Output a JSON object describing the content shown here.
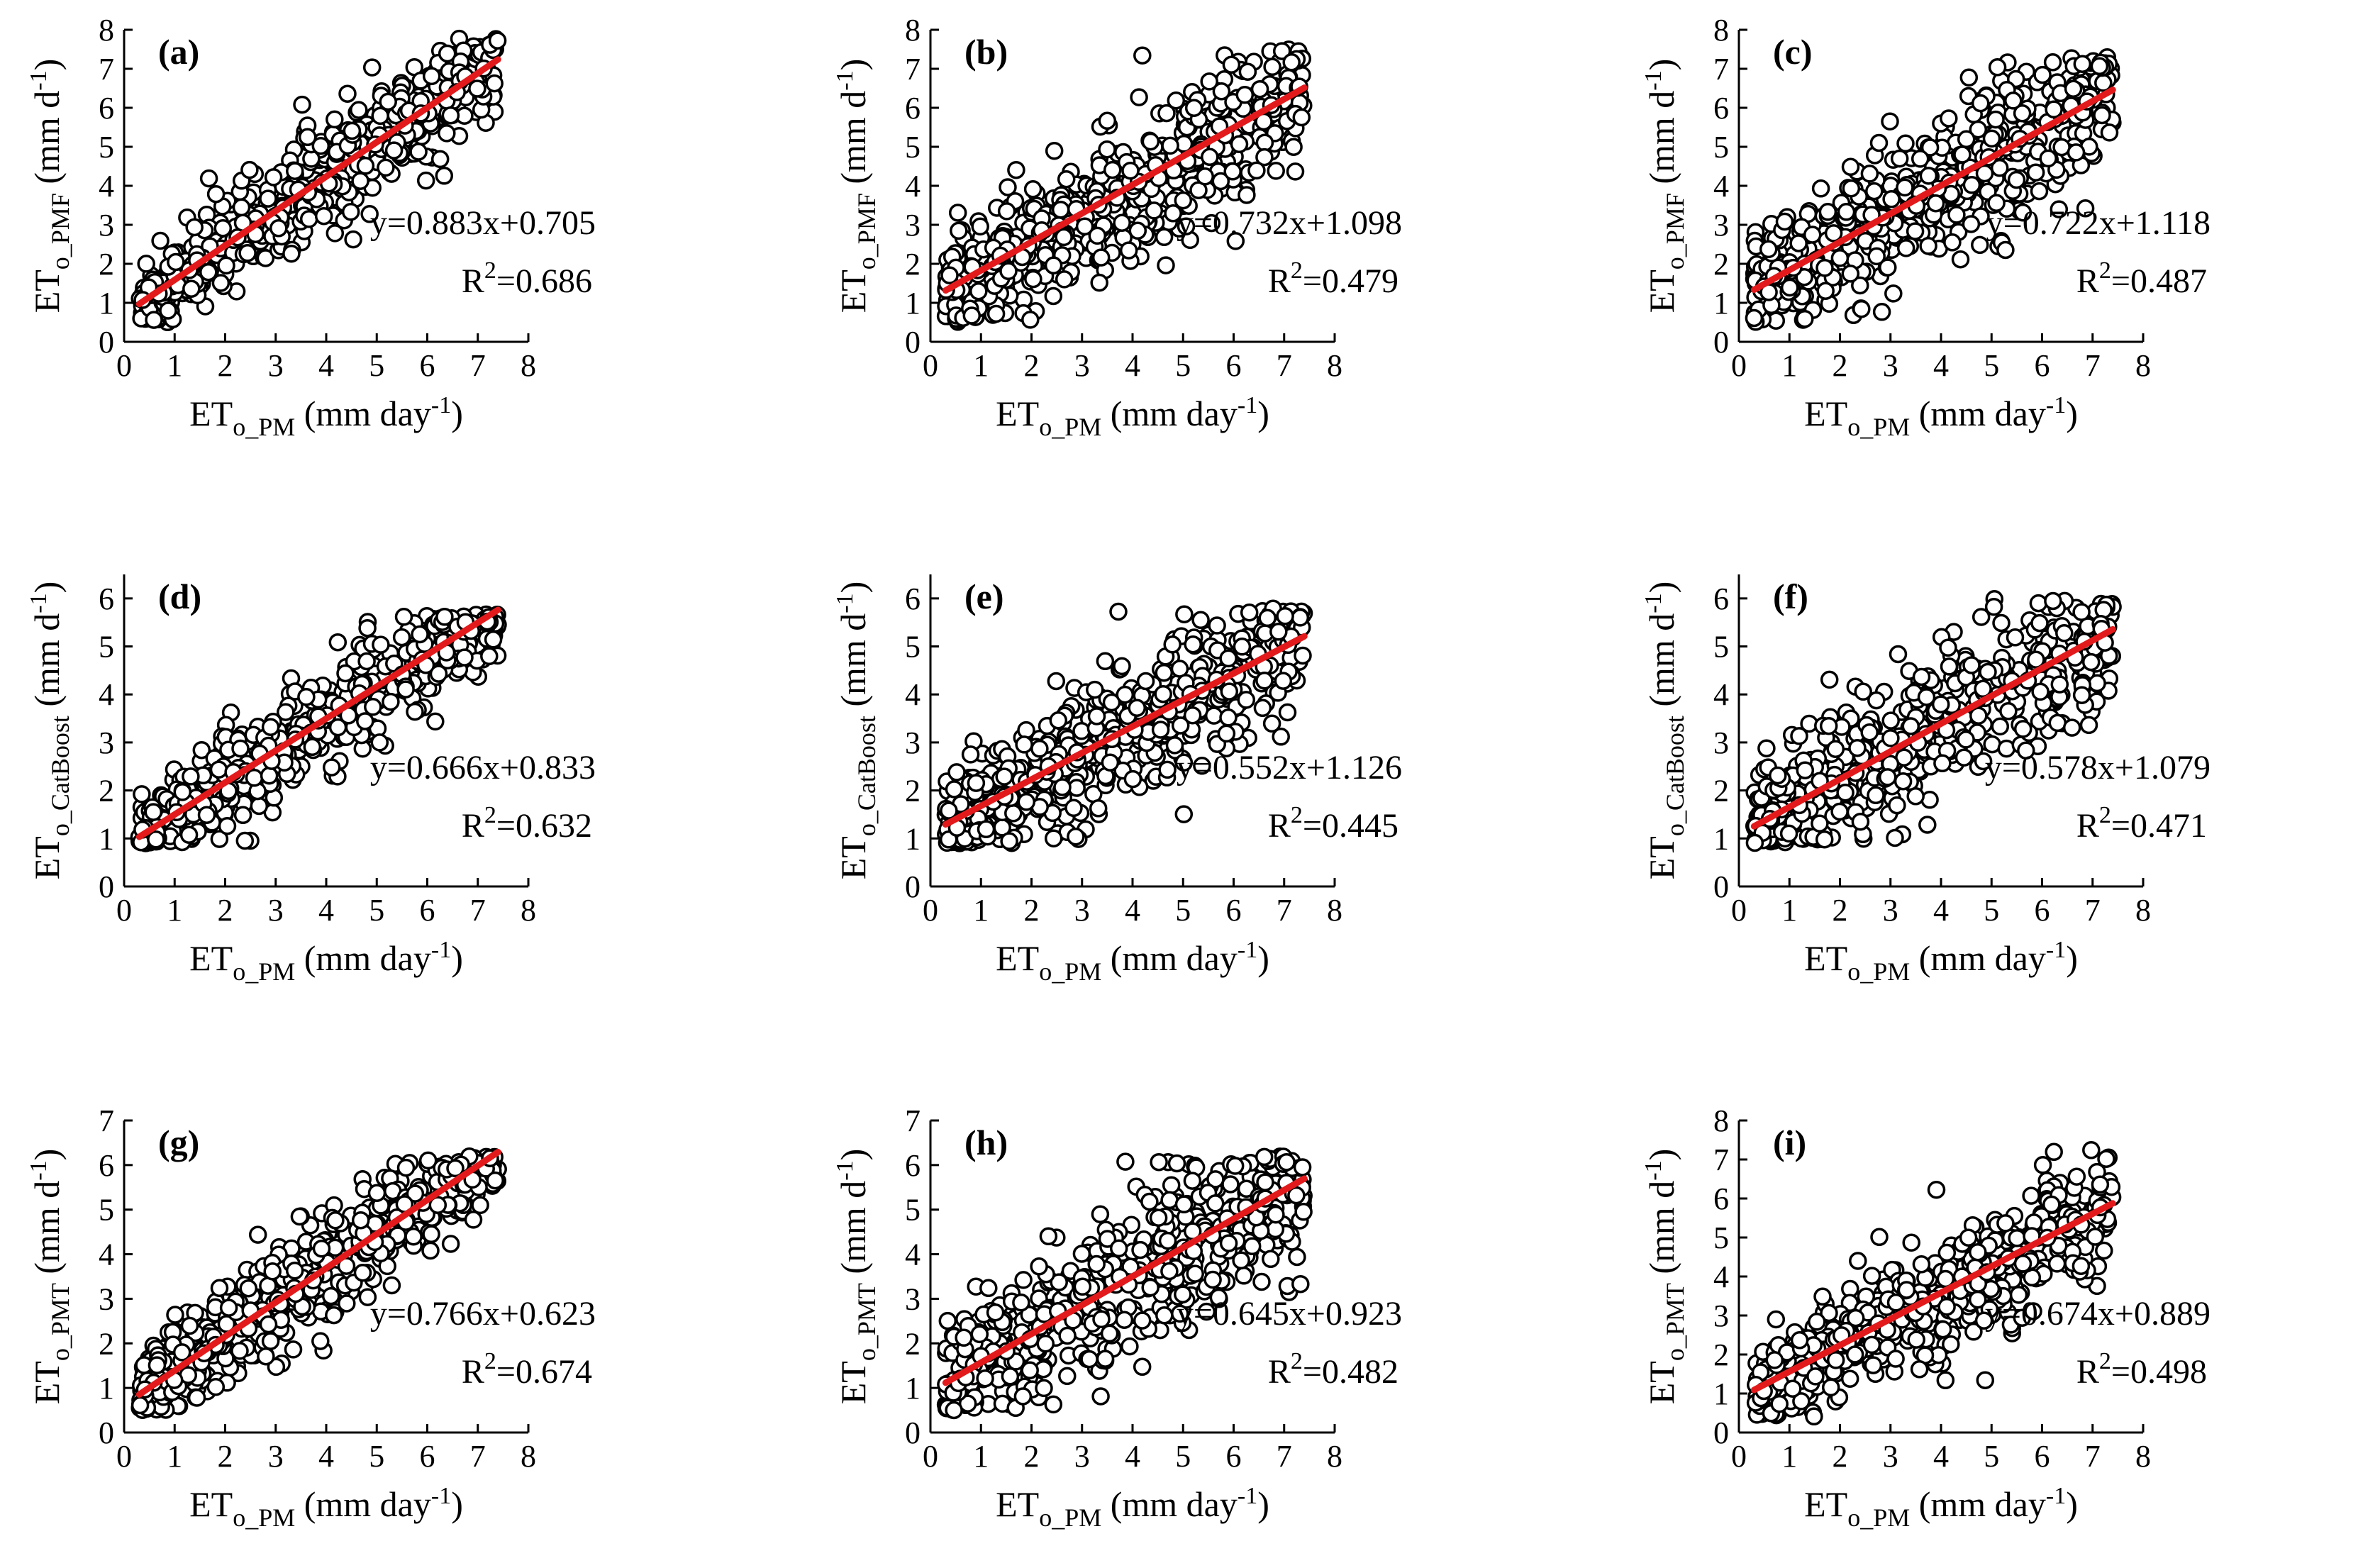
{
  "figure": {
    "type": "scatter_grid",
    "colors": {
      "point_stroke": "#000000",
      "point_fill": "#ffffff",
      "regression_line": "#e31a1c",
      "axes": "#000000"
    }
  },
  "chart_data": [
    {
      "id": "a",
      "label": "(a)",
      "type": "scatter",
      "xlabel": {
        "main": "ET",
        "sub": "o_PM",
        "rest": " (mm day",
        "sup": "-1",
        "end": ")"
      },
      "ylabel": {
        "main": "ET",
        "sub": "o_PMF",
        "rest": " (mm d",
        "sup": "-1",
        "end": ")"
      },
      "xlim": [
        0,
        8
      ],
      "ylim": [
        0,
        8
      ],
      "xticks": [
        0,
        1,
        2,
        3,
        4,
        5,
        6,
        7,
        8
      ],
      "yticks": [
        0,
        1,
        2,
        3,
        4,
        5,
        6,
        7,
        8
      ],
      "fit": {
        "slope": 0.883,
        "intercept": 0.705,
        "x_range": [
          0.3,
          7.4
        ]
      },
      "equation": "y=0.883x+0.705",
      "r2_prefix": "R",
      "r2_sup": "2",
      "r2_value": "=0.686",
      "sample": {
        "n": 560,
        "seed": 101,
        "noise_sd": 0.9,
        "y_floor": 0.5,
        "y_ceil": 7.8
      }
    },
    {
      "id": "b",
      "label": "(b)",
      "type": "scatter",
      "xlabel": {
        "main": "ET",
        "sub": "o_PM",
        "rest": " (mm day",
        "sup": "-1",
        "end": ")"
      },
      "ylabel": {
        "main": "ET",
        "sub": "o_PMF",
        "rest": " (mm d",
        "sup": "-1",
        "end": ")"
      },
      "xlim": [
        0,
        8
      ],
      "ylim": [
        0,
        8
      ],
      "xticks": [
        0,
        1,
        2,
        3,
        4,
        5,
        6,
        7,
        8
      ],
      "yticks": [
        0,
        1,
        2,
        3,
        4,
        5,
        6,
        7,
        8
      ],
      "fit": {
        "slope": 0.732,
        "intercept": 1.098,
        "x_range": [
          0.3,
          7.4
        ]
      },
      "equation": "y=0.732x+1.098",
      "r2_prefix": "R",
      "r2_sup": "2",
      "r2_value": "=0.479",
      "sample": {
        "n": 560,
        "seed": 202,
        "noise_sd": 1.25,
        "y_floor": 0.5,
        "y_ceil": 7.5
      }
    },
    {
      "id": "c",
      "label": "(c)",
      "type": "scatter",
      "xlabel": {
        "main": "ET",
        "sub": "o_PM",
        "rest": " (mm day",
        "sup": "-1",
        "end": ")"
      },
      "ylabel": {
        "main": "ET",
        "sub": "o_PMF",
        "rest": " (mm d",
        "sup": "-1",
        "end": ")"
      },
      "xlim": [
        0,
        8
      ],
      "ylim": [
        0,
        8
      ],
      "xticks": [
        0,
        1,
        2,
        3,
        4,
        5,
        6,
        7,
        8
      ],
      "yticks": [
        0,
        1,
        2,
        3,
        4,
        5,
        6,
        7,
        8
      ],
      "fit": {
        "slope": 0.722,
        "intercept": 1.118,
        "x_range": [
          0.3,
          7.4
        ]
      },
      "equation": "y=0.722x+1.118",
      "r2_prefix": "R",
      "r2_sup": "2",
      "r2_value": "=0.487",
      "sample": {
        "n": 560,
        "seed": 303,
        "noise_sd": 1.2,
        "y_floor": 0.5,
        "y_ceil": 7.3
      }
    },
    {
      "id": "d",
      "label": "(d)",
      "type": "scatter",
      "xlabel": {
        "main": "ET",
        "sub": "o_PM",
        "rest": " (mm day",
        "sup": "-1",
        "end": ")"
      },
      "ylabel": {
        "main": "ET",
        "sub": "o_CatBoost",
        "rest": " (mm d",
        "sup": "-1",
        "end": ")"
      },
      "xlim": [
        0,
        8
      ],
      "ylim": [
        0,
        6.5
      ],
      "xticks": [
        0,
        1,
        2,
        3,
        4,
        5,
        6,
        7,
        8
      ],
      "yticks": [
        0,
        1,
        2,
        3,
        4,
        5,
        6
      ],
      "fit": {
        "slope": 0.666,
        "intercept": 0.833,
        "x_range": [
          0.3,
          7.4
        ]
      },
      "equation": "y=0.666x+0.833",
      "r2_prefix": "R",
      "r2_sup": "2",
      "r2_value": "=0.632",
      "sample": {
        "n": 560,
        "seed": 404,
        "noise_sd": 0.75,
        "y_floor": 0.9,
        "y_ceil": 5.7
      }
    },
    {
      "id": "e",
      "label": "(e)",
      "type": "scatter",
      "xlabel": {
        "main": "ET",
        "sub": "o_PM",
        "rest": " (mm day",
        "sup": "-1",
        "end": ")"
      },
      "ylabel": {
        "main": "ET",
        "sub": "o_CatBoost",
        "rest": " (mm d",
        "sup": "-1",
        "end": ")"
      },
      "xlim": [
        0,
        8
      ],
      "ylim": [
        0,
        6.5
      ],
      "xticks": [
        0,
        1,
        2,
        3,
        4,
        5,
        6,
        7,
        8
      ],
      "yticks": [
        0,
        1,
        2,
        3,
        4,
        5,
        6
      ],
      "fit": {
        "slope": 0.552,
        "intercept": 1.126,
        "x_range": [
          0.3,
          7.4
        ]
      },
      "equation": "y=0.552x+1.126",
      "r2_prefix": "R",
      "r2_sup": "2",
      "r2_value": "=0.445",
      "sample": {
        "n": 560,
        "seed": 505,
        "noise_sd": 1.0,
        "y_floor": 0.9,
        "y_ceil": 5.8
      }
    },
    {
      "id": "f",
      "label": "(f)",
      "type": "scatter",
      "xlabel": {
        "main": "ET",
        "sub": "o_PM",
        "rest": " (mm day",
        "sup": "-1",
        "end": ")"
      },
      "ylabel": {
        "main": "ET",
        "sub": "o_CatBoost",
        "rest": " (mm d",
        "sup": "-1",
        "end": ")"
      },
      "xlim": [
        0,
        8
      ],
      "ylim": [
        0,
        6.5
      ],
      "xticks": [
        0,
        1,
        2,
        3,
        4,
        5,
        6,
        7,
        8
      ],
      "yticks": [
        0,
        1,
        2,
        3,
        4,
        5,
        6
      ],
      "fit": {
        "slope": 0.578,
        "intercept": 1.079,
        "x_range": [
          0.3,
          7.4
        ]
      },
      "equation": "y=0.578x+1.079",
      "r2_prefix": "R",
      "r2_sup": "2",
      "r2_value": "=0.471",
      "sample": {
        "n": 560,
        "seed": 606,
        "noise_sd": 1.0,
        "y_floor": 0.9,
        "y_ceil": 6.0
      }
    },
    {
      "id": "g",
      "label": "(g)",
      "type": "scatter",
      "xlabel": {
        "main": "ET",
        "sub": "o_PM",
        "rest": " (mm day",
        "sup": "-1",
        "end": ")"
      },
      "ylabel": {
        "main": "ET",
        "sub": "o_PMT",
        "rest": " (mm d",
        "sup": "-1",
        "end": ")"
      },
      "xlim": [
        0,
        8
      ],
      "ylim": [
        0,
        7
      ],
      "xticks": [
        0,
        1,
        2,
        3,
        4,
        5,
        6,
        7,
        8
      ],
      "yticks": [
        0,
        1,
        2,
        3,
        4,
        5,
        6,
        7
      ],
      "fit": {
        "slope": 0.766,
        "intercept": 0.623,
        "x_range": [
          0.3,
          7.4
        ]
      },
      "equation": "y=0.766x+0.623",
      "r2_prefix": "R",
      "r2_sup": "2",
      "r2_value": "=0.674",
      "sample": {
        "n": 560,
        "seed": 707,
        "noise_sd": 0.8,
        "y_floor": 0.5,
        "y_ceil": 6.2
      }
    },
    {
      "id": "h",
      "label": "(h)",
      "type": "scatter",
      "xlabel": {
        "main": "ET",
        "sub": "o_PM",
        "rest": " (mm day",
        "sup": "-1",
        "end": ")"
      },
      "ylabel": {
        "main": "ET",
        "sub": "o_PMT",
        "rest": " (mm d",
        "sup": "-1",
        "end": ")"
      },
      "xlim": [
        0,
        8
      ],
      "ylim": [
        0,
        7
      ],
      "xticks": [
        0,
        1,
        2,
        3,
        4,
        5,
        6,
        7,
        8
      ],
      "yticks": [
        0,
        1,
        2,
        3,
        4,
        5,
        6,
        7
      ],
      "fit": {
        "slope": 0.645,
        "intercept": 0.923,
        "x_range": [
          0.3,
          7.4
        ]
      },
      "equation": "y=0.645x+0.923",
      "r2_prefix": "R",
      "r2_sup": "2",
      "r2_value": "=0.482",
      "sample": {
        "n": 560,
        "seed": 808,
        "noise_sd": 1.1,
        "y_floor": 0.5,
        "y_ceil": 6.2
      }
    },
    {
      "id": "i",
      "label": "(i)",
      "type": "scatter",
      "xlabel": {
        "main": "ET",
        "sub": "o_PM",
        "rest": " (mm day",
        "sup": "-1",
        "end": ")"
      },
      "ylabel": {
        "main": "ET",
        "sub": "o_PMT",
        "rest": " (mm d",
        "sup": "-1",
        "end": ")"
      },
      "xlim": [
        0,
        8
      ],
      "ylim": [
        0,
        8
      ],
      "xticks": [
        0,
        1,
        2,
        3,
        4,
        5,
        6,
        7,
        8
      ],
      "yticks": [
        0,
        1,
        2,
        3,
        4,
        5,
        6,
        7,
        8
      ],
      "fit": {
        "slope": 0.674,
        "intercept": 0.889,
        "x_range": [
          0.3,
          7.4
        ]
      },
      "equation": "y=0.674x+0.889",
      "r2_prefix": "R",
      "r2_sup": "2",
      "r2_value": "=0.498",
      "sample": {
        "n": 560,
        "seed": 909,
        "noise_sd": 1.05,
        "y_floor": 0.4,
        "y_ceil": 7.3
      }
    }
  ]
}
